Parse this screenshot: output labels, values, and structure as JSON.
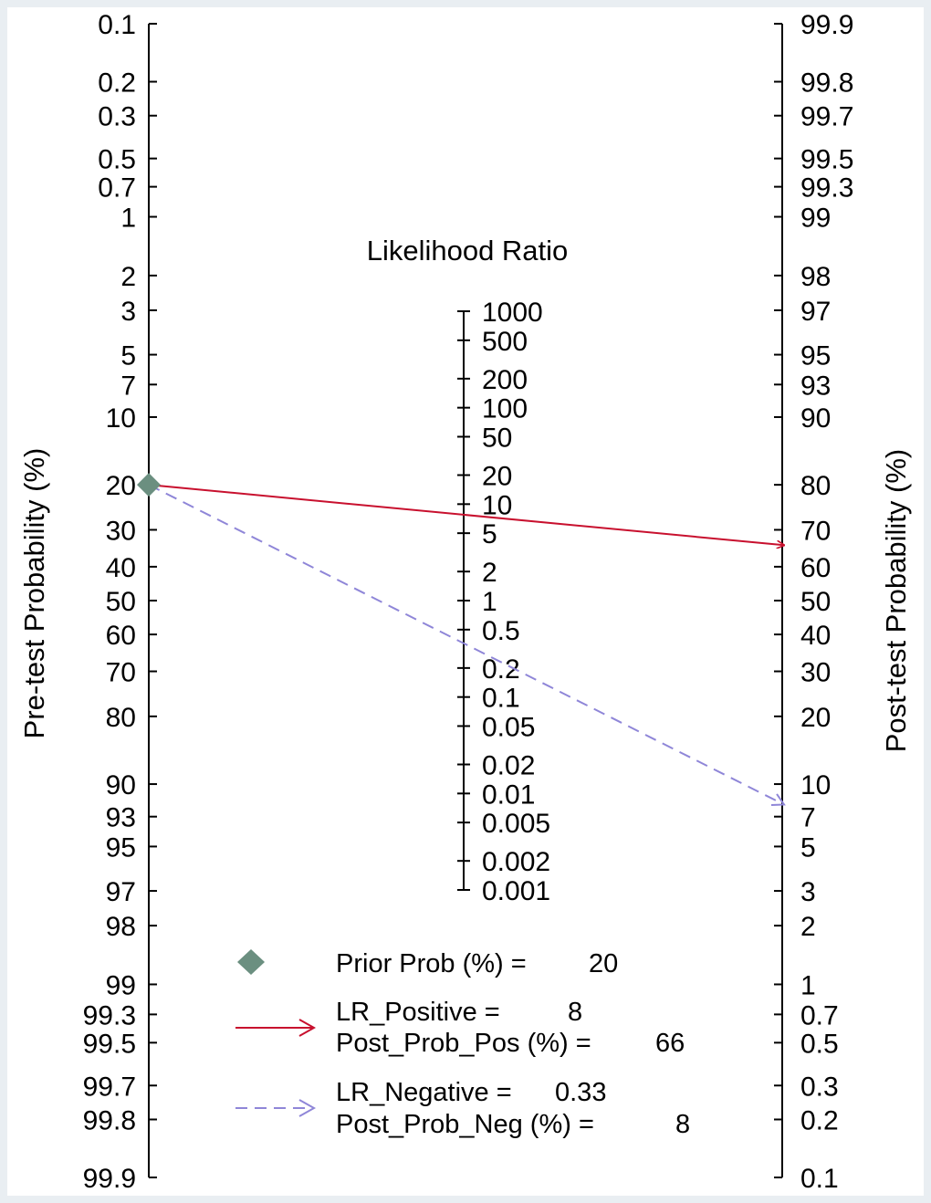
{
  "chart_data": {
    "type": "fagan-nomogram",
    "pretest_axis": {
      "title": "Pre-test Probability (%)",
      "ticks": [
        "0.1",
        "0.2",
        "0.3",
        "0.5",
        "0.7",
        "1",
        "2",
        "3",
        "5",
        "7",
        "10",
        "20",
        "30",
        "40",
        "50",
        "60",
        "70",
        "80",
        "90",
        "93",
        "95",
        "97",
        "98",
        "99",
        "99.3",
        "99.5",
        "99.7",
        "99.8",
        "99.9"
      ]
    },
    "posttest_axis": {
      "title": "Post-test Probability (%)",
      "ticks": [
        "99.9",
        "99.8",
        "99.7",
        "99.5",
        "99.3",
        "99",
        "98",
        "97",
        "95",
        "93",
        "90",
        "80",
        "70",
        "60",
        "50",
        "40",
        "30",
        "20",
        "10",
        "7",
        "5",
        "3",
        "2",
        "1",
        "0.7",
        "0.5",
        "0.3",
        "0.2",
        "0.1"
      ]
    },
    "lr_axis": {
      "title": "Likelihood Ratio",
      "ticks": [
        "1000",
        "500",
        "200",
        "100",
        "50",
        "20",
        "10",
        "5",
        "2",
        "1",
        "0.5",
        "0.2",
        "0.1",
        "0.05",
        "0.02",
        "0.01",
        "0.005",
        "0.002",
        "0.001"
      ]
    },
    "prior_prob": 20,
    "lr_positive": 8,
    "post_prob_pos": 66,
    "lr_negative": 0.33,
    "post_prob_neg": 8,
    "colors": {
      "background": "#e9eef2",
      "plot": "#ffffff",
      "positive": "#c8102e",
      "negative": "#8f86d8",
      "prior_marker": "#6b8f80"
    }
  },
  "legend": {
    "prior_label": "Prior Prob (%) =",
    "prior_value": "20",
    "lr_pos_label": "LR_Positive =",
    "lr_pos_value": "8",
    "post_pos_label": "Post_Prob_Pos (%) =",
    "post_pos_value": "66",
    "lr_neg_label": "LR_Negative =",
    "lr_neg_value": "0.33",
    "post_neg_label": "Post_Prob_Neg (%) =",
    "post_neg_value": "8"
  }
}
